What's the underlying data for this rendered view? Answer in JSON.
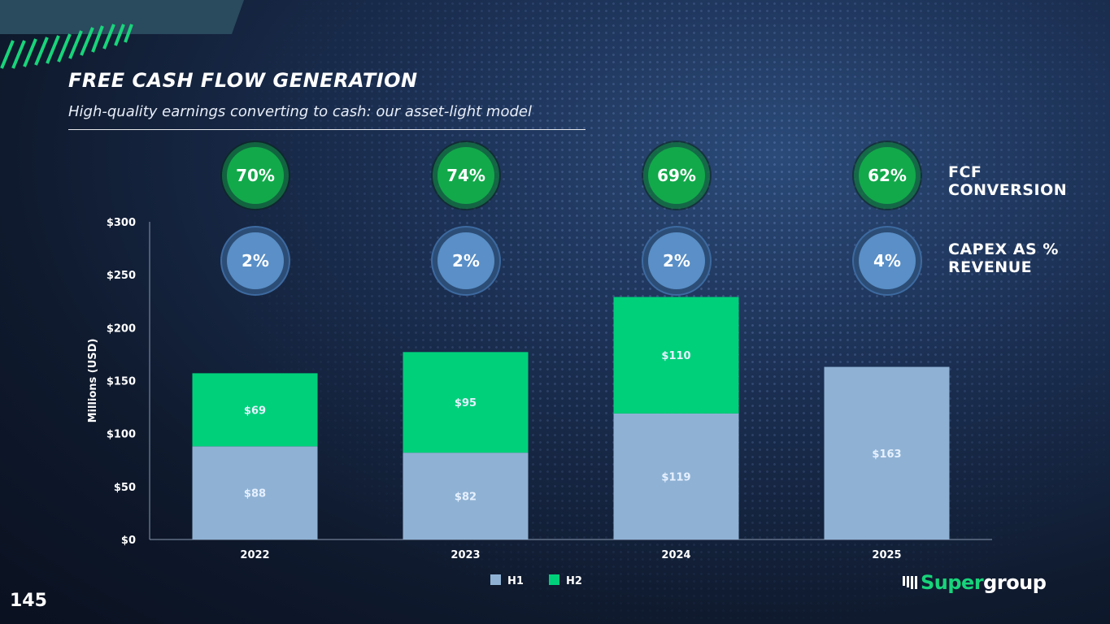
{
  "title": "FREE CASH FLOW GENERATION",
  "subtitle": "High-quality earnings converting to cash: our asset-light model",
  "page_number": "145",
  "logo": {
    "part1": "Super",
    "part2": "group"
  },
  "row_labels": {
    "fcf": [
      "FCF",
      "CONVERSION"
    ],
    "capex": [
      "CAPEX AS %",
      "REVENUE"
    ]
  },
  "colors": {
    "h1": "#8fb2d4",
    "h2": "#00d07a",
    "fcf_badge": "#12a94a",
    "capex_badge": "#5a8fc7",
    "axis": "#ffffff"
  },
  "chart_data": {
    "type": "bar",
    "stacked": true,
    "categories": [
      "2022",
      "2023",
      "2024",
      "2025"
    ],
    "series": [
      {
        "name": "H1",
        "values": [
          88,
          82,
          119,
          163
        ],
        "labels": [
          "$88",
          "$82",
          "$119",
          "$163"
        ]
      },
      {
        "name": "H2",
        "values": [
          69,
          95,
          110,
          null
        ],
        "labels": [
          "$69",
          "$95",
          "$110",
          ""
        ]
      }
    ],
    "ylabel": "Millions (USD)",
    "ylim": [
      0,
      300
    ],
    "yticks": [
      0,
      50,
      100,
      150,
      200,
      250,
      300
    ],
    "ytick_labels": [
      "$0",
      "$50",
      "$100",
      "$150",
      "$200",
      "$250",
      "$300"
    ],
    "legend": {
      "position": "bottom",
      "entries": [
        "H1",
        "H2"
      ]
    },
    "grid": false,
    "annotations": {
      "fcf_conversion": [
        "70%",
        "74%",
        "69%",
        "62%"
      ],
      "capex_pct_revenue": [
        "2%",
        "2%",
        "2%",
        "4%"
      ]
    }
  }
}
